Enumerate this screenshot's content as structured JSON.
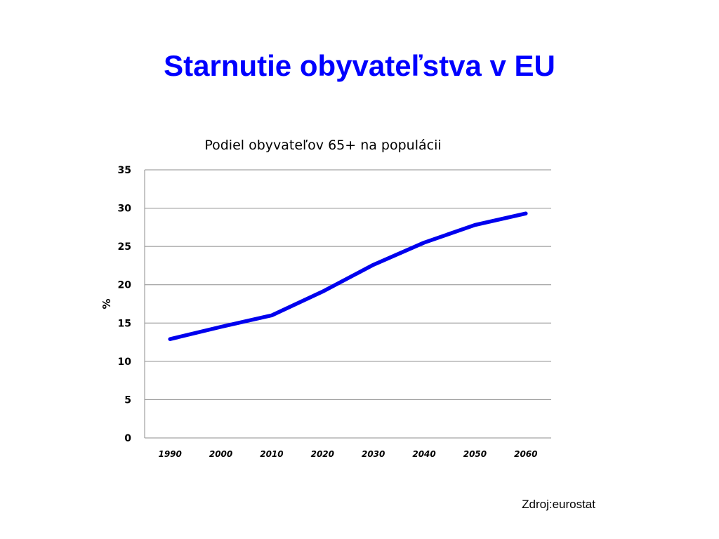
{
  "slide": {
    "title": "Starnutie obyvateľstva v EU",
    "source": "Zdroj:eurostat"
  },
  "colors": {
    "title": "#0000ff",
    "line": "#0000ee",
    "grid": "#8c8c8c"
  },
  "chart_data": {
    "type": "line",
    "title": "Podiel obyvateľov  65+  na populácii",
    "xlabel": "",
    "ylabel": "%",
    "categories": [
      "1990",
      "2000",
      "2010",
      "2020",
      "2030",
      "2040",
      "2050",
      "2060"
    ],
    "series": [
      {
        "values": [
          12.9,
          14.5,
          16.0,
          19.1,
          22.6,
          25.5,
          27.8,
          29.3
        ]
      }
    ],
    "ylim": [
      0,
      35
    ],
    "yticks": [
      0,
      5,
      10,
      15,
      20,
      25,
      30,
      35
    ],
    "grid": true,
    "legend": "none"
  }
}
